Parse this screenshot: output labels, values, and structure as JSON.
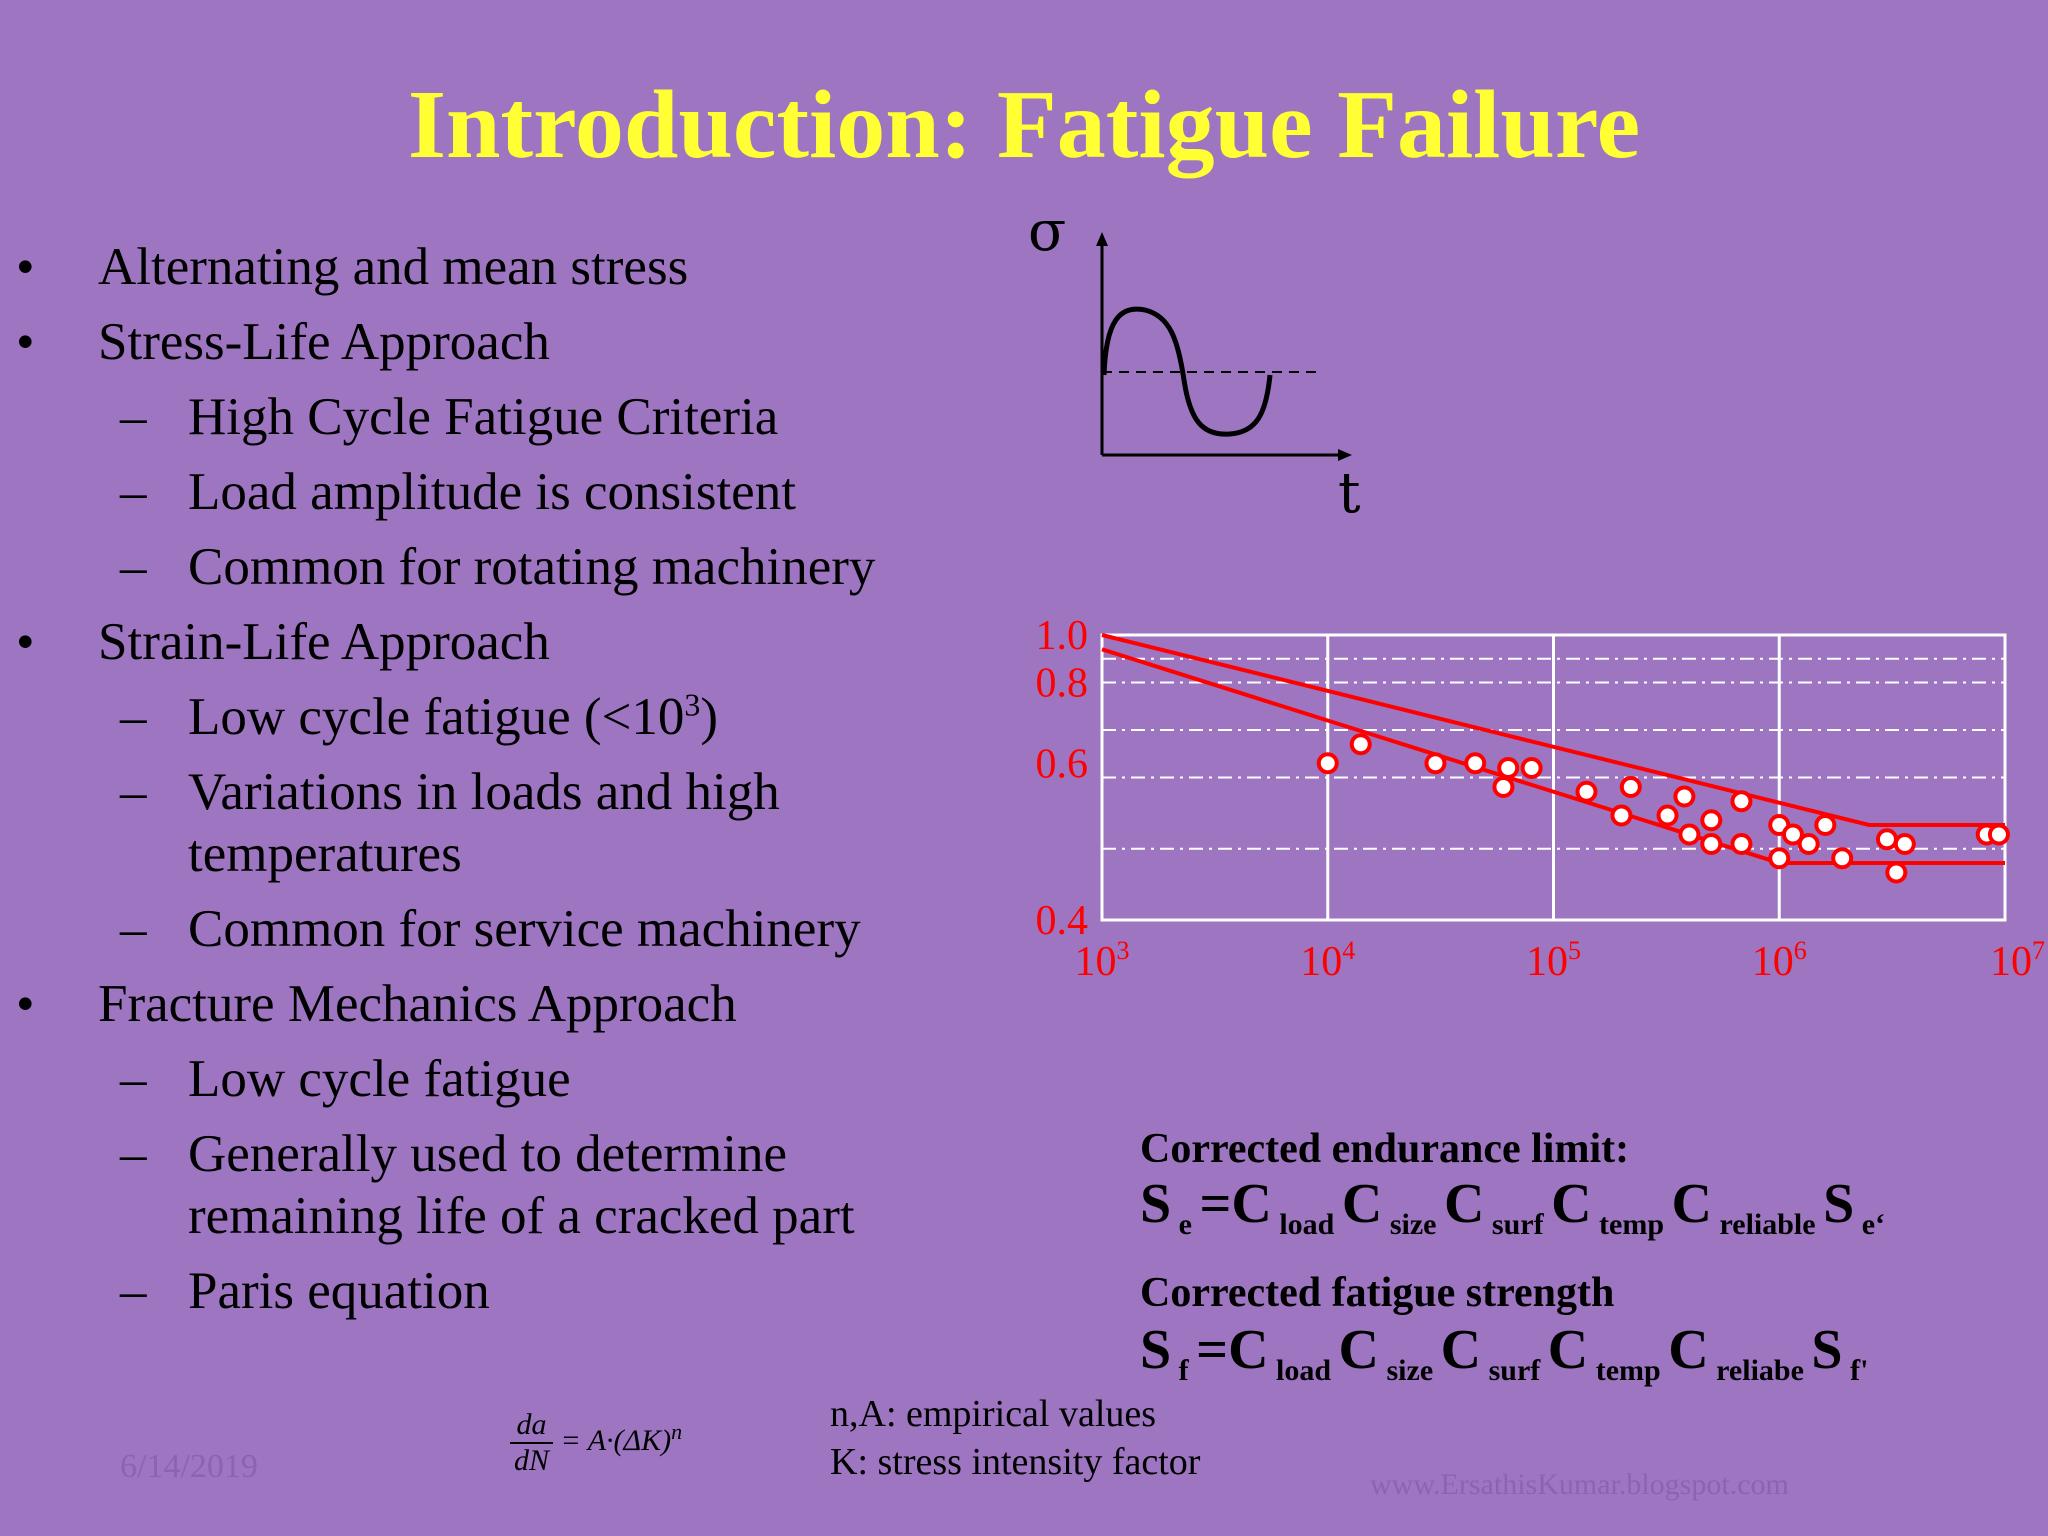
{
  "slide": {
    "title": "Introduction: Fatigue Failure"
  },
  "bullets": [
    {
      "level": 1,
      "text": "Alternating and mean stress"
    },
    {
      "level": 1,
      "text": "Stress-Life Approach"
    },
    {
      "level": 2,
      "text": "High Cycle Fatigue Criteria"
    },
    {
      "level": 2,
      "text": "Load amplitude is consistent"
    },
    {
      "level": 2,
      "text": "Common for rotating machinery"
    },
    {
      "level": 1,
      "text": "Strain-Life Approach"
    },
    {
      "level": 2,
      "text": "Low cycle fatigue (<10",
      "sup": "3",
      "after": ")"
    },
    {
      "level": 2,
      "text": "Variations in loads and high"
    },
    {
      "level": 2,
      "text": "temperatures",
      "continuation": true
    },
    {
      "level": 2,
      "text": "Common for service machinery"
    },
    {
      "level": 1,
      "text": "Fracture Mechanics Approach"
    },
    {
      "level": 2,
      "text": "Low cycle fatigue"
    },
    {
      "level": 2,
      "text": "Generally used to determine"
    },
    {
      "level": 2,
      "text": "remaining life of a cracked part",
      "continuation": true
    },
    {
      "level": 2,
      "text": "Paris equation"
    }
  ],
  "bullet_marks": {
    "level1": "•",
    "level2": "–"
  },
  "stress_diagram": {
    "y_label": "σ",
    "x_label": "t"
  },
  "chart_data": {
    "type": "scatter",
    "y_ticks": [
      "1.0",
      "0.8",
      "0.6",
      "0.4"
    ],
    "x_ticks": [
      {
        "base": "10",
        "exp": "3"
      },
      {
        "base": "10",
        "exp": "4"
      },
      {
        "base": "10",
        "exp": "5"
      },
      {
        "base": "10",
        "exp": "6"
      },
      {
        "base": "10",
        "exp": "7"
      }
    ],
    "x_scale": "log",
    "xlim": [
      1000,
      10000000
    ],
    "ylim": [
      0.4,
      1.0
    ],
    "upper_band": [
      [
        1000,
        1.0
      ],
      [
        2500000,
        0.6
      ],
      [
        10000000,
        0.6
      ]
    ],
    "lower_band": [
      [
        1000,
        0.97
      ],
      [
        1000000,
        0.52
      ],
      [
        10000000,
        0.52
      ]
    ],
    "points": [
      [
        10000,
        0.73
      ],
      [
        14000,
        0.77
      ],
      [
        30000,
        0.73
      ],
      [
        45000,
        0.73
      ],
      [
        63000,
        0.72
      ],
      [
        80000,
        0.72
      ],
      [
        60000,
        0.68
      ],
      [
        140000,
        0.67
      ],
      [
        220000,
        0.68
      ],
      [
        200000,
        0.62
      ],
      [
        320000,
        0.62
      ],
      [
        380000,
        0.66
      ],
      [
        500000,
        0.61
      ],
      [
        680000,
        0.65
      ],
      [
        400000,
        0.58
      ],
      [
        500000,
        0.56
      ],
      [
        680000,
        0.56
      ],
      [
        1000000,
        0.6
      ],
      [
        1150000,
        0.58
      ],
      [
        1600000,
        0.6
      ],
      [
        1350000,
        0.56
      ],
      [
        1000000,
        0.53
      ],
      [
        1900000,
        0.53
      ],
      [
        3000000,
        0.57
      ],
      [
        3600000,
        0.56
      ],
      [
        3300000,
        0.5
      ],
      [
        8300000,
        0.58
      ],
      [
        9400000,
        0.58
      ]
    ],
    "grid": true,
    "colors": {
      "axis_labels": "#ff0000",
      "bands": "#ff0000",
      "grid": "#ffffff",
      "points_fill": "#ffffff",
      "points_stroke": "#ff0000"
    }
  },
  "endurance": {
    "heading": "Corrected endurance limit:",
    "formula": [
      {
        "t": "S"
      },
      {
        "sub": "e"
      },
      {
        "t": "=C"
      },
      {
        "sub": "load"
      },
      {
        "t": "C"
      },
      {
        "sub": "size"
      },
      {
        "t": "C"
      },
      {
        "sub": "surf"
      },
      {
        "t": "C"
      },
      {
        "sub": "temp"
      },
      {
        "t": "C"
      },
      {
        "sub": "reliable"
      },
      {
        "t": "S"
      },
      {
        "sub": "e‘"
      }
    ]
  },
  "fatigue_strength": {
    "heading": "Corrected fatigue strength",
    "formula": [
      {
        "t": "S"
      },
      {
        "sub": "f"
      },
      {
        "t": "=C"
      },
      {
        "sub": "load"
      },
      {
        "t": "C"
      },
      {
        "sub": "size"
      },
      {
        "t": "C"
      },
      {
        "sub": "surf"
      },
      {
        "t": "C"
      },
      {
        "sub": "temp"
      },
      {
        "t": "C"
      },
      {
        "sub": "reliabe"
      },
      {
        "t": "S"
      },
      {
        "sub": "f'"
      }
    ]
  },
  "paris_equation": {
    "numerator": "da",
    "denominator": "dN",
    "rhs": "= A·(ΔK)",
    "rhs_sup": "n"
  },
  "notes": [
    "n,A: empirical values",
    "K: stress intensity factor"
  ],
  "footer": {
    "date": "6/14/2019",
    "watermark": "www.ErsathisKumar.blogspot.com"
  }
}
